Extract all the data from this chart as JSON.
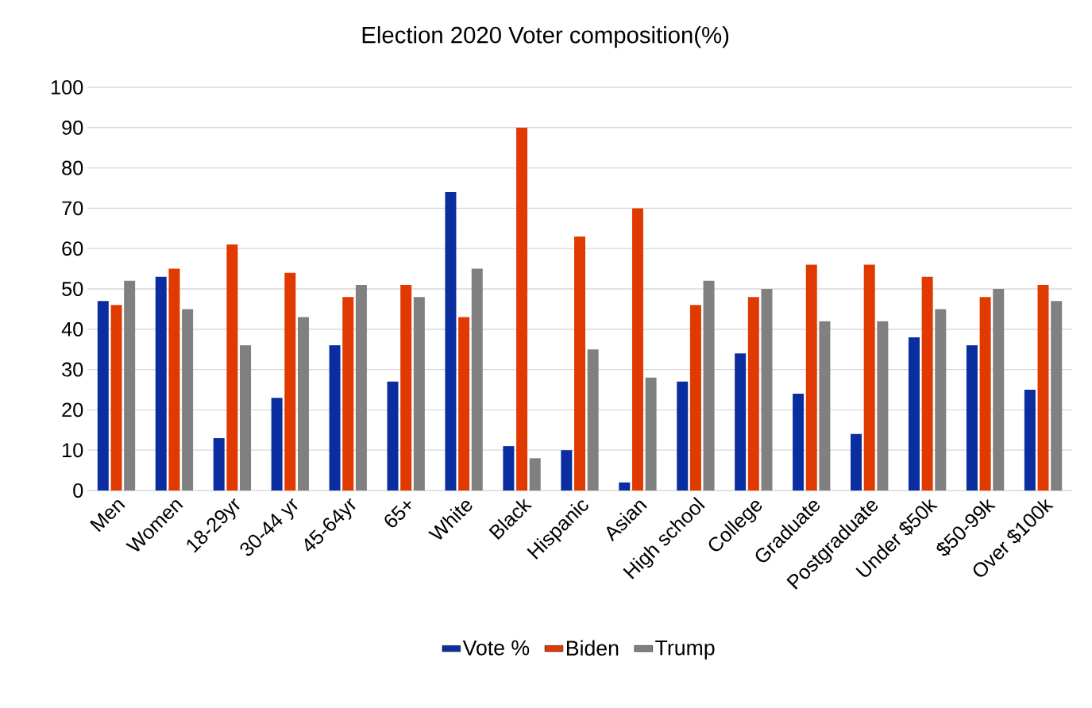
{
  "chart_data": {
    "type": "bar",
    "title": "Election 2020 Voter composition(%)",
    "categories": [
      "Men",
      "Women",
      "18-29yr",
      "30-44 yr",
      "45-64yr",
      "65+",
      "White",
      "Black",
      "Hispanic",
      "Asian",
      "High school",
      "College",
      "Graduate",
      "Postgraduate",
      "Under $50k",
      "$50-99k",
      "Over $100k"
    ],
    "series": [
      {
        "name": "Vote %",
        "color": "#0a2ea0",
        "values": [
          47,
          53,
          13,
          23,
          36,
          27,
          74,
          11,
          10,
          2,
          27,
          34,
          24,
          14,
          38,
          36,
          25
        ]
      },
      {
        "name": "Biden",
        "color": "#e03a00",
        "values": [
          46,
          55,
          61,
          54,
          48,
          51,
          43,
          90,
          63,
          70,
          46,
          48,
          56,
          56,
          53,
          48,
          51
        ]
      },
      {
        "name": "Trump",
        "color": "#808080",
        "values": [
          52,
          45,
          36,
          43,
          51,
          48,
          55,
          8,
          35,
          28,
          52,
          50,
          42,
          42,
          45,
          50,
          47
        ]
      }
    ],
    "ylim": [
      0,
      100
    ],
    "yticks": [
      0,
      10,
      20,
      30,
      40,
      50,
      60,
      70,
      80,
      90,
      100
    ],
    "grid": "y",
    "legend": "bottom"
  }
}
